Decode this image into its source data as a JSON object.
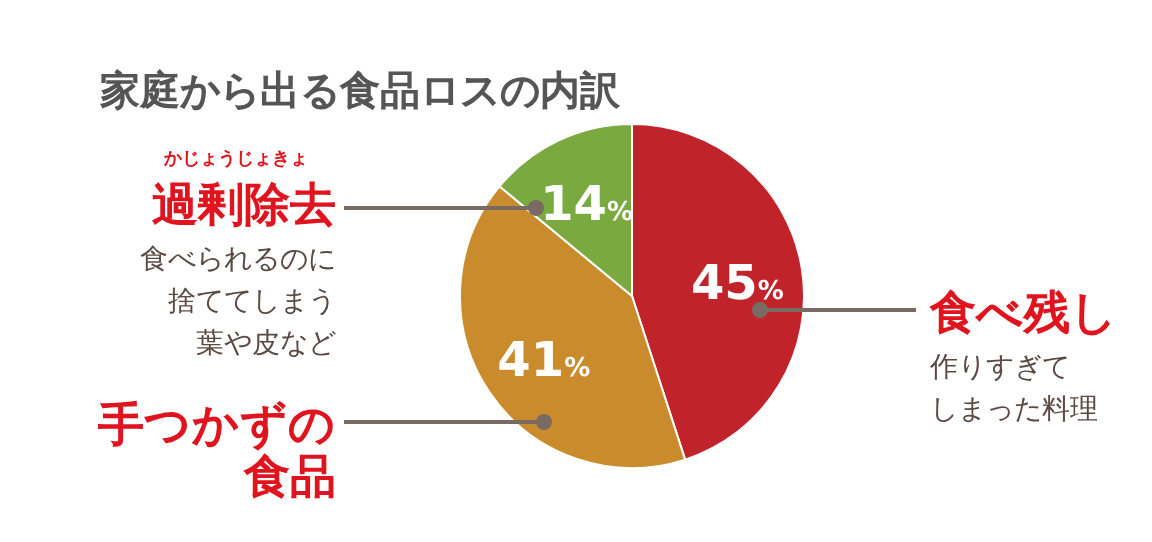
{
  "chart_data": {
    "type": "pie",
    "title": "家庭から出る食品ロスの内訳",
    "categories": [
      "食べ残し",
      "手つかずの食品",
      "過剰除去"
    ],
    "values": [
      45,
      41,
      14
    ],
    "colors": [
      "#c1232b",
      "#c98b2c",
      "#79a93f"
    ],
    "value_labels": [
      "45%",
      "41%",
      "14%"
    ],
    "annotations": [
      "かじょうじょきょ",
      "食べられるのに",
      "捨ててしまう",
      "葉や皮など",
      "作りすぎて",
      "しまった料理"
    ]
  }
}
